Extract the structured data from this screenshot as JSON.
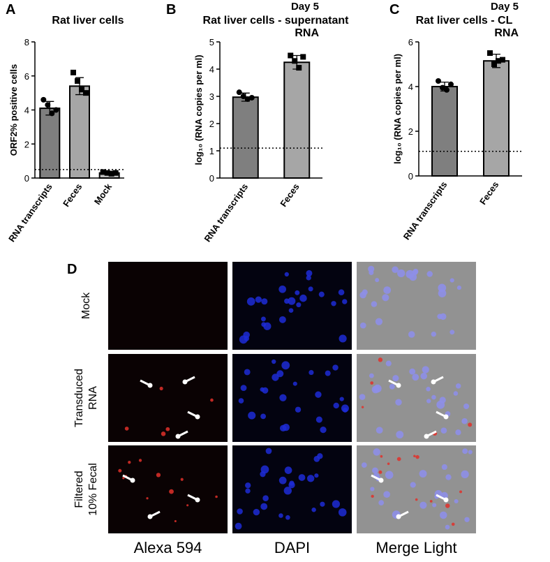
{
  "chart_data": [
    {
      "type": "bar",
      "panel": "A",
      "title": [
        "Rat liver cells"
      ],
      "ylabel": "ORF2% positive cells",
      "categories": [
        "RNA transcripts",
        "Feces",
        "Mock"
      ],
      "values": [
        4.1,
        5.4,
        0.3
      ],
      "errors": [
        0.4,
        0.5,
        0.1
      ],
      "points": [
        [
          4.6,
          4.3,
          3.8,
          4.0
        ],
        [
          6.2,
          5.7,
          5.2,
          5.0
        ],
        [
          0.35,
          0.3,
          0.25,
          0.3
        ]
      ],
      "colors": [
        "#7f7f7f",
        "#a6a6a6",
        "#bfbfbf"
      ],
      "ylim": [
        0,
        8
      ],
      "yticks": [
        0,
        2,
        4,
        6,
        8
      ],
      "threshold": 0.5
    },
    {
      "type": "bar",
      "panel": "B",
      "subtitle": "Day 5",
      "title": [
        "Rat liver cells - supernatant",
        "RNA"
      ],
      "ylabel": "log₁₀ (RNA copies per ml)",
      "categories": [
        "RNA transcripts",
        "Feces"
      ],
      "values": [
        2.97,
        4.25
      ],
      "errors": [
        0.15,
        0.25
      ],
      "points": [
        [
          3.15,
          3.0,
          2.9,
          2.95
        ],
        [
          4.5,
          4.3,
          4.05,
          4.45
        ]
      ],
      "colors": [
        "#7f7f7f",
        "#a6a6a6"
      ],
      "ylim": [
        0,
        5
      ],
      "yticks": [
        0,
        1,
        2,
        3,
        4,
        5
      ],
      "threshold": 1.1
    },
    {
      "type": "bar",
      "panel": "C",
      "subtitle": "Day 5",
      "title": [
        "Rat liver cells - CL",
        "RNA"
      ],
      "ylabel": "log₁₀ (RNA copies per ml)",
      "categories": [
        "RNA transcripts",
        "Feces"
      ],
      "values": [
        4.0,
        5.15
      ],
      "errors": [
        0.2,
        0.3
      ],
      "points": [
        [
          4.25,
          3.95,
          3.85,
          4.1
        ],
        [
          5.5,
          5.0,
          5.15,
          5.2
        ]
      ],
      "colors": [
        "#7f7f7f",
        "#a6a6a6"
      ],
      "ylim": [
        0,
        6
      ],
      "yticks": [
        0,
        2,
        4,
        6
      ],
      "threshold": 1.1
    }
  ],
  "image_panel": {
    "panel": "D",
    "columns": [
      "Alexa 594",
      "DAPI",
      "Merge Light"
    ],
    "rows": [
      [
        "Mock"
      ],
      [
        "Transduced",
        "RNA"
      ],
      [
        "Filtered",
        "10% Fecal"
      ]
    ]
  }
}
